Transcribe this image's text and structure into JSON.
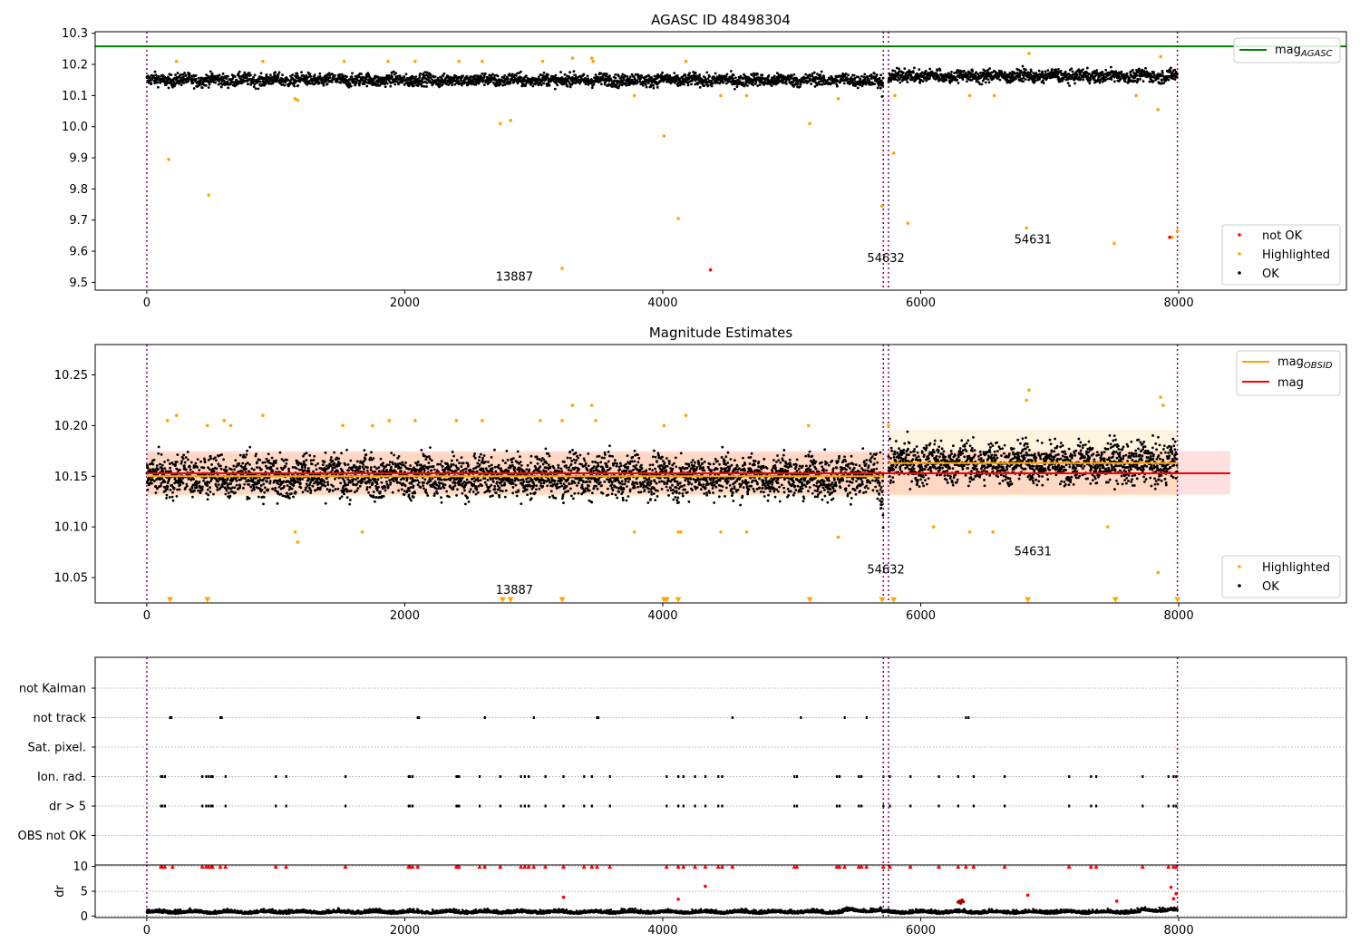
{
  "chart_data": [
    {
      "type": "scatter",
      "title": "AGASC ID 48498304",
      "xlabel": "",
      "ylabel": "",
      "xlim": [
        -400,
        9300
      ],
      "ylim": [
        9.475,
        10.305
      ],
      "x_ticks": [
        0,
        2000,
        4000,
        6000,
        8000
      ],
      "x_tick_labels": [
        "0",
        "2000",
        "4000",
        "6000",
        "8000"
      ],
      "y_ticks": [
        9.5,
        9.6,
        9.7,
        9.8,
        9.9,
        10.0,
        10.1,
        10.2,
        10.3
      ],
      "y_tick_labels": [
        "9.5",
        "9.6",
        "9.7",
        "9.8",
        "9.9",
        "10.0",
        "10.1",
        "10.2",
        "10.3"
      ],
      "grid": false,
      "obsid_boundaries": [
        0,
        5710,
        5750,
        7990
      ],
      "hlines": [
        {
          "name": "mag_AGASC",
          "y": 10.258,
          "color": "#008000"
        }
      ],
      "legend_top": {
        "placement": "top-right",
        "entries": [
          {
            "label": "mag",
            "sub": "AGASC",
            "color": "#008000",
            "kind": "line"
          }
        ]
      },
      "legend_bottom": {
        "placement": "lower-right",
        "entries": [
          {
            "label": "not OK",
            "color": "#ff0000",
            "kind": "dot"
          },
          {
            "label": "Highlighted",
            "color": "#ffa500",
            "kind": "dot"
          },
          {
            "label": "OK",
            "color": "#000000",
            "kind": "dot"
          }
        ]
      },
      "annotations": [
        {
          "text": "13887",
          "x": 2850,
          "y": 9.505
        },
        {
          "text": "54632",
          "x": 5730,
          "y": 9.565
        },
        {
          "text": "54631",
          "x": 6870,
          "y": 9.625
        }
      ],
      "ok_band": {
        "x_segments": [
          [
            0,
            5710
          ],
          [
            5750,
            7990
          ]
        ],
        "center": [
          10.15,
          10.163
        ],
        "spread": 0.022
      },
      "highlighted_points": {
        "x": [
          170,
          230,
          480,
          900,
          1150,
          1170,
          1530,
          1870,
          2080,
          2420,
          2600,
          2740,
          2820,
          3070,
          3220,
          3300,
          3450,
          3460,
          3780,
          4010,
          4120,
          4180,
          4450,
          4650,
          5140,
          5360,
          5700,
          5790,
          5800,
          5900,
          6380,
          6570,
          6820,
          6840,
          7500,
          7670,
          7840,
          7860,
          7950,
          7990
        ],
        "y": [
          9.895,
          10.21,
          9.78,
          10.21,
          10.09,
          10.085,
          10.21,
          10.21,
          10.21,
          10.21,
          10.21,
          10.01,
          10.02,
          10.21,
          9.545,
          10.22,
          10.22,
          10.21,
          10.1,
          9.97,
          9.705,
          10.21,
          10.1,
          10.1,
          10.01,
          10.09,
          9.745,
          9.915,
          10.1,
          9.69,
          10.1,
          10.1,
          9.675,
          10.235,
          9.625,
          10.1,
          10.055,
          10.225,
          9.645,
          9.665
        ]
      },
      "notok_points": {
        "x": [
          4370,
          7930
        ],
        "y": [
          9.54,
          9.645
        ]
      }
    },
    {
      "type": "scatter",
      "title": "Magnitude Estimates",
      "xlabel": "",
      "ylabel": "",
      "xlim": [
        -400,
        9300
      ],
      "ylim": [
        10.025,
        10.28
      ],
      "x_ticks": [
        0,
        2000,
        4000,
        6000,
        8000
      ],
      "x_tick_labels": [
        "0",
        "2000",
        "4000",
        "6000",
        "8000"
      ],
      "y_ticks": [
        10.05,
        10.1,
        10.15,
        10.2,
        10.25
      ],
      "y_tick_labels": [
        "10.05",
        "10.10",
        "10.15",
        "10.20",
        "10.25"
      ],
      "grid": false,
      "obsid_boundaries": [
        0,
        5710,
        5750,
        7990
      ],
      "mag": {
        "name": "mag",
        "y": 10.153,
        "x_range": [
          0,
          8400
        ],
        "band": [
          10.132,
          10.175
        ],
        "color": "#ff0000"
      },
      "mag_obsid": [
        {
          "x_range": [
            0,
            5710
          ],
          "y": 10.15,
          "band": [
            10.13,
            10.173
          ]
        },
        {
          "x_range": [
            5750,
            7990
          ],
          "y": 10.163,
          "band": [
            10.13,
            10.196
          ]
        }
      ],
      "legend_top": {
        "placement": "top-right",
        "entries": [
          {
            "label": "mag",
            "sub": "OBSID",
            "color": "#ffa500",
            "kind": "line"
          },
          {
            "label": "mag",
            "sub": "",
            "color": "#ff0000",
            "kind": "line"
          }
        ]
      },
      "legend_bottom": {
        "placement": "lower-right",
        "entries": [
          {
            "label": "Highlighted",
            "color": "#ffa500",
            "kind": "dot"
          },
          {
            "label": "OK",
            "color": "#000000",
            "kind": "dot"
          }
        ]
      },
      "annotations": [
        {
          "text": "13887",
          "x": 2850,
          "y": 10.034
        },
        {
          "text": "54632",
          "x": 5730,
          "y": 10.054
        },
        {
          "text": "54631",
          "x": 6870,
          "y": 10.072
        }
      ],
      "ok_band": {
        "x_segments": [
          [
            0,
            5710
          ],
          [
            5750,
            7990
          ]
        ],
        "center": [
          10.15,
          10.163
        ],
        "spread": 0.022
      },
      "highlighted_points": {
        "x": [
          160,
          230,
          470,
          600,
          650,
          900,
          1150,
          1170,
          1520,
          1670,
          1750,
          1880,
          2080,
          2400,
          2600,
          3050,
          3220,
          3300,
          3450,
          3480,
          3780,
          4010,
          4120,
          4140,
          4180,
          4450,
          4650,
          5130,
          5360,
          5750,
          6100,
          6380,
          6560,
          6820,
          6840,
          7450,
          7840,
          7860,
          7880
        ],
        "y": [
          10.205,
          10.21,
          10.2,
          10.205,
          10.2,
          10.21,
          10.095,
          10.085,
          10.2,
          10.095,
          10.2,
          10.205,
          10.205,
          10.205,
          10.205,
          10.205,
          10.205,
          10.22,
          10.22,
          10.205,
          10.095,
          10.2,
          10.095,
          10.095,
          10.21,
          10.095,
          10.095,
          10.2,
          10.09,
          10.2,
          10.1,
          10.095,
          10.095,
          10.225,
          10.235,
          10.1,
          10.055,
          10.228,
          10.22
        ]
      },
      "below_markers": {
        "x": [
          180,
          470,
          2760,
          2820,
          3220,
          4010,
          4030,
          4120,
          5140,
          5700,
          5790,
          6830,
          7510,
          7990
        ],
        "y": 10.028
      }
    },
    {
      "type": "scatter",
      "title": "",
      "xlabel": "",
      "ylabel": "",
      "xlim": [
        -400,
        9300
      ],
      "flag_rows": [
        "not Kalman",
        "not track",
        "Sat. pixel.",
        "Ion. rad.",
        "dr > 5",
        "OBS not OK"
      ],
      "flag_events": {
        "not Kalman": [],
        "not track": [
          180,
          190,
          570,
          580,
          2100,
          2110,
          2620,
          3000,
          3490,
          3500,
          4540,
          5070,
          5410,
          5580,
          6350,
          6370
        ],
        "Sat. pixel.": [],
        "Ion. rad.": [
          110,
          120,
          140,
          430,
          460,
          480,
          500,
          510,
          610,
          1000,
          1080,
          1540,
          2030,
          2040,
          2060,
          2400,
          2410,
          2420,
          2580,
          2740,
          2900,
          2930,
          2960,
          3090,
          3230,
          3390,
          3450,
          3590,
          4030,
          4120,
          4160,
          4250,
          4330,
          4430,
          4460,
          5020,
          5040,
          5350,
          5370,
          5520,
          5540,
          5710,
          5760,
          5920,
          6140,
          6290,
          6410,
          6650,
          7150,
          7320,
          7360,
          7720,
          7920,
          7960,
          7980
        ],
        "dr > 5": [
          110,
          120,
          140,
          430,
          460,
          480,
          500,
          510,
          610,
          1000,
          1080,
          1540,
          2030,
          2040,
          2060,
          2400,
          2410,
          2420,
          2580,
          2740,
          2900,
          2930,
          2960,
          3090,
          3230,
          3390,
          3450,
          3590,
          4030,
          4120,
          4160,
          4250,
          4330,
          4430,
          4460,
          5020,
          5040,
          5350,
          5370,
          5520,
          5540,
          5710,
          5760,
          5920,
          6140,
          6290,
          6410,
          6650,
          7150,
          7320,
          7360,
          7720,
          7920,
          7960,
          7980
        ],
        "OBS not OK": []
      },
      "obsid_boundaries": [
        0,
        5710,
        5750,
        7990
      ]
    },
    {
      "type": "scatter",
      "title": "",
      "xlabel": "",
      "ylabel": "dr",
      "xlim": [
        -400,
        9300
      ],
      "ylim": [
        -0.3,
        10.3
      ],
      "x_ticks": [
        0,
        2000,
        4000,
        6000,
        8000
      ],
      "x_tick_labels": [
        "0",
        "2000",
        "4000",
        "6000",
        "8000"
      ],
      "y_ticks": [
        0,
        5,
        10
      ],
      "y_tick_labels": [
        "0",
        "5",
        "10"
      ],
      "grid": true,
      "obsid_boundaries": [
        0,
        5710,
        5750,
        7990
      ],
      "dr_trace": {
        "x_range": [
          0,
          7990
        ],
        "level": 0.6,
        "noise": 0.5
      },
      "capped_markers": {
        "x": [
          110,
          120,
          140,
          200,
          430,
          460,
          480,
          500,
          510,
          570,
          610,
          1000,
          1080,
          1540,
          2030,
          2040,
          2060,
          2100,
          2400,
          2410,
          2420,
          2580,
          2620,
          2740,
          2900,
          2930,
          2960,
          3000,
          3090,
          3230,
          3390,
          3450,
          3490,
          3590,
          4030,
          4120,
          4160,
          4250,
          4330,
          4430,
          4460,
          4540,
          5020,
          5040,
          5350,
          5370,
          5410,
          5520,
          5540,
          5580,
          5710,
          5760,
          5920,
          6140,
          6290,
          6350,
          6410,
          6650,
          7150,
          7320,
          7360,
          7720,
          7920,
          7960,
          7980
        ],
        "y": 10
      },
      "red_points": {
        "x": [
          3230,
          4120,
          4330,
          6830,
          7520,
          7940,
          7960,
          7980
        ],
        "y": [
          3.8,
          3.4,
          6.0,
          4.2,
          3.0,
          5.8,
          3.5,
          4.5
        ]
      },
      "dark_red_points": {
        "x": [
          6290,
          6300,
          6310,
          6320,
          6330
        ],
        "y": [
          2.8,
          3.0,
          2.6,
          3.2,
          2.9
        ]
      }
    }
  ]
}
